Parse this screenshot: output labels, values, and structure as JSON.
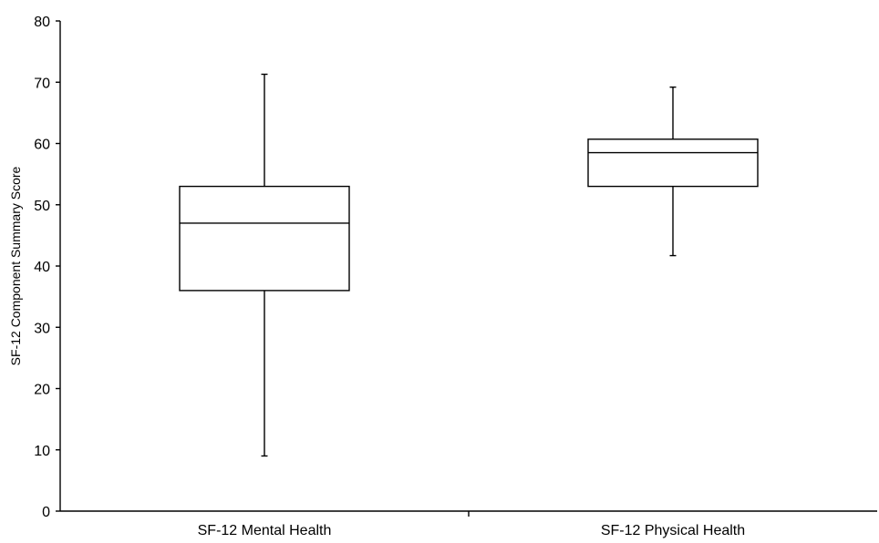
{
  "chart_data": {
    "type": "boxplot",
    "title": "",
    "xlabel": "",
    "ylabel": "SF-12 Component Summary Score",
    "ylim": [
      0,
      80
    ],
    "yticks": [
      0,
      10,
      20,
      30,
      40,
      50,
      60,
      70,
      80
    ],
    "grid": false,
    "legend": "none",
    "categories": [
      "SF-12 Mental Health",
      "SF-12 Physical Health"
    ],
    "boxes": [
      {
        "category": "SF-12 Mental Health",
        "min": 9,
        "q1": 36,
        "median": 47,
        "q3": 53,
        "max": 71.3
      },
      {
        "category": "SF-12 Physical Health",
        "min": 41.7,
        "q1": 53,
        "median": 58.5,
        "q3": 60.7,
        "max": 69.2
      }
    ]
  }
}
